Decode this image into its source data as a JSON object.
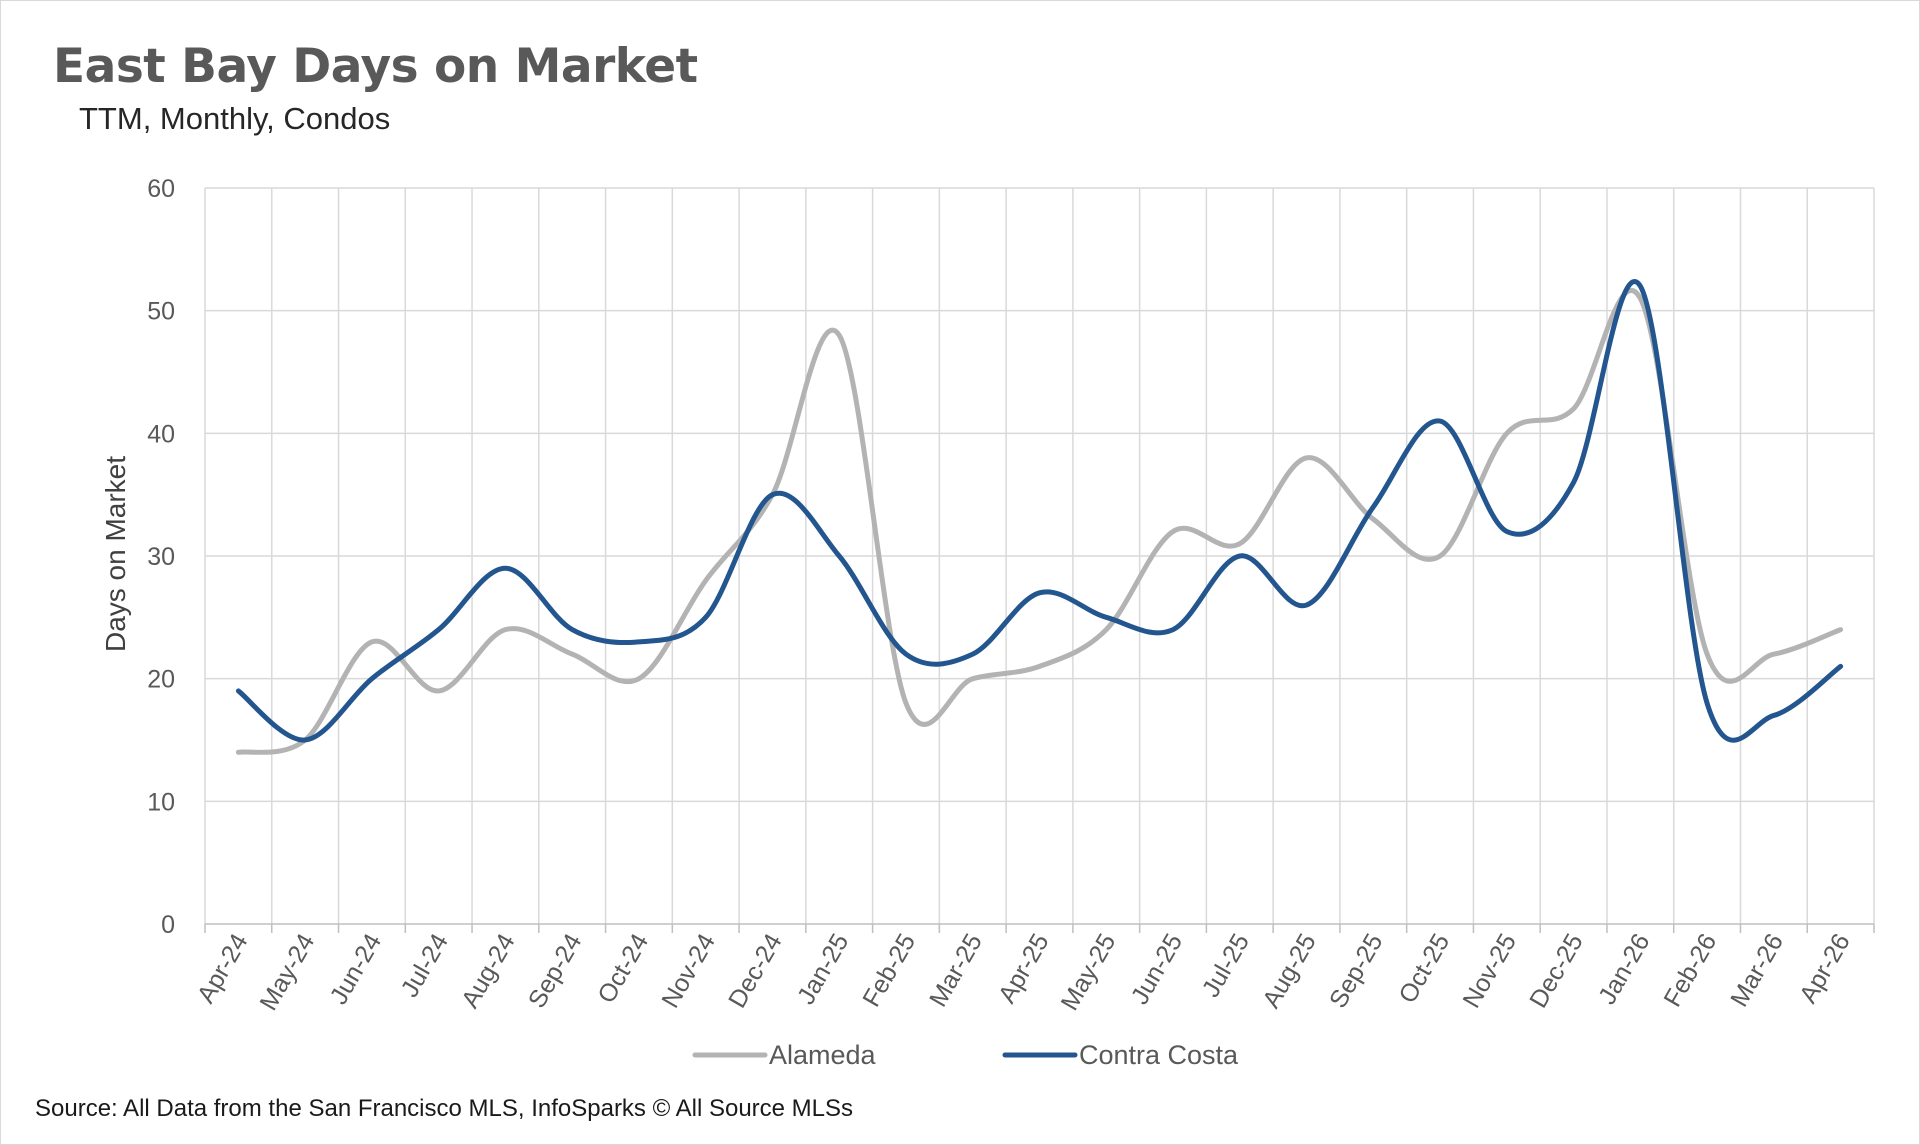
{
  "title": "East Bay Days on Market",
  "subtitle": "TTM, Monthly, Condos",
  "source": "Source: All Data from the San Francisco MLS, InfoSparks © All Source MLSs",
  "chart_data": {
    "type": "line",
    "ylabel": "Days on Market",
    "xlabel": "",
    "ylim": [
      0,
      60
    ],
    "yticks": [
      0,
      10,
      20,
      30,
      40,
      50,
      60
    ],
    "grid": true,
    "legend_position": "bottom",
    "categories": [
      "Apr-24",
      "May-24",
      "Jun-24",
      "Jul-24",
      "Aug-24",
      "Sep-24",
      "Oct-24",
      "Nov-24",
      "Dec-24",
      "Jan-25",
      "Feb-25",
      "Mar-25",
      "Apr-25",
      "May-25",
      "Jun-25",
      "Jul-25",
      "Aug-25",
      "Sep-25",
      "Oct-25",
      "Nov-25",
      "Dec-25",
      "Jan-26",
      "Feb-26",
      "Mar-26",
      "Apr-26"
    ],
    "series": [
      {
        "name": "Alameda",
        "color": "#b3b3b3",
        "values": [
          14,
          15,
          23,
          19,
          24,
          22,
          20,
          28,
          35,
          48,
          18,
          20,
          21,
          24,
          32,
          31,
          38,
          33,
          30,
          40,
          42,
          51,
          22,
          22,
          24
        ]
      },
      {
        "name": "Contra Costa",
        "color": "#23568f",
        "values": [
          19,
          15,
          20,
          24,
          29,
          24,
          23,
          25,
          35,
          30,
          22,
          22,
          27,
          25,
          24,
          30,
          26,
          34,
          41,
          32,
          36,
          52,
          18,
          17,
          21
        ]
      }
    ]
  }
}
